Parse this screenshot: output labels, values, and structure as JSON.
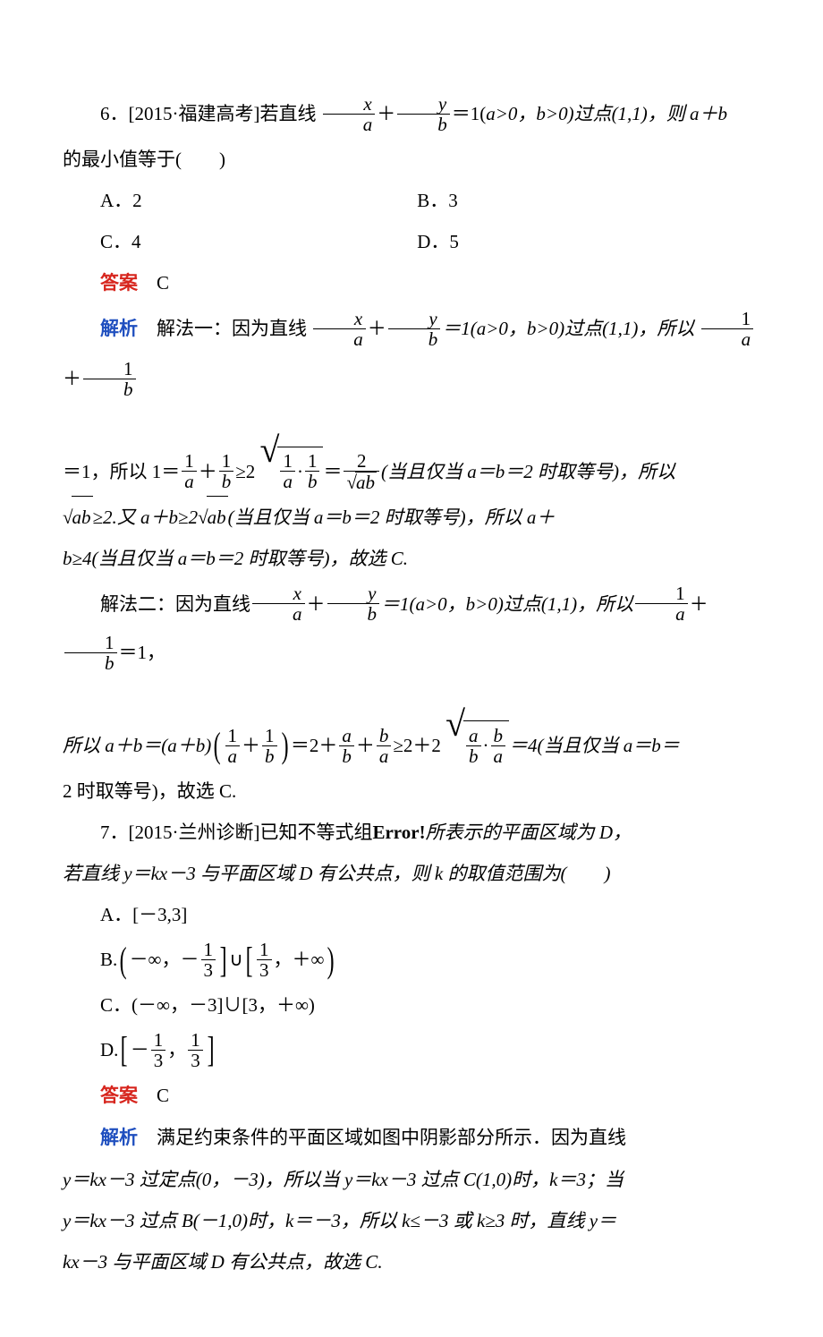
{
  "colors": {
    "text": "#000000",
    "answer_label": "#d7261e",
    "explain_label": "#1f4fbf",
    "background": "#ffffff",
    "rule": "#000000"
  },
  "typography": {
    "body_family": "SimSun / Songti SC, serif",
    "latin_math_family": "Times New Roman, serif",
    "label_family": "SimHei / Heiti SC, sans-serif",
    "body_fontsize_pt": 16,
    "line_height": 2.2
  },
  "labels": {
    "answer": "答案",
    "explain": "解析"
  },
  "q6": {
    "number": "6．",
    "source": "[2015·福建高考]",
    "stem_before_frac": "若直线",
    "stem_frac1_num": "x",
    "stem_frac1_den": "a",
    "stem_plus": "＋",
    "stem_frac2_num": "y",
    "stem_frac2_den": "b",
    "stem_eq": "＝1(",
    "stem_cond": "a>0，b>0)过点(1,1)，则 a＋b",
    "stem_line2": "的最小值等于(　　)",
    "options": {
      "A": "A．2",
      "B": "B．3",
      "C": "C．4",
      "D": "D．5"
    },
    "answer_value": "C",
    "method1_label": "解法一：因为直线",
    "m1_frac1_num": "x",
    "m1_frac1_den": "a",
    "m1_frac2_num": "y",
    "m1_frac2_den": "b",
    "m1_mid": "＝1(a>0，b>0)过点(1,1)，所以",
    "m1_frac3_num": "1",
    "m1_frac3_den": "a",
    "m1_frac4_num": "1",
    "m1_frac4_den": "b",
    "m1_line2_a": "＝1，所以 1＝",
    "m1_frac5_num": "1",
    "m1_frac5_den": "a",
    "m1_frac6_num": "1",
    "m1_frac6_den": "b",
    "m1_ge": "≥2",
    "m1_rt_inner_num1": "1",
    "m1_rt_inner_den1": "a",
    "m1_rt_inner_num2": "1",
    "m1_rt_inner_den2": "b",
    "m1_eq2_num": "2",
    "m1_eq2_den_rad": "ab",
    "m1_line2_tail": "(当且仅当 a＝b＝2 时取等号)，所以",
    "m1_line3_a": "ab",
    "m1_line3_b": "≥2.又 a＋b≥2",
    "m1_line3_c": "ab",
    "m1_line3_d": "(当且仅当 a＝b＝2 时取等号)，所以 a＋",
    "m1_line4": "b≥4(当且仅当 a＝b＝2 时取等号)，故选 C.",
    "method2_label": "解法二：因为直线",
    "m2_frac1_num": "x",
    "m2_frac1_den": "a",
    "m2_frac2_num": "y",
    "m2_frac2_den": "b",
    "m2_mid": "＝1(a>0，b>0)过点(1,1)，所以",
    "m2_frac3_num": "1",
    "m2_frac3_den": "a",
    "m2_frac4_num": "1",
    "m2_frac4_den": "b",
    "m2_tail1": "＝1，",
    "m2_line2_a": "所以 a＋b＝(a＋b)",
    "m2_pfrac1_num": "1",
    "m2_pfrac1_den": "a",
    "m2_pfrac2_num": "1",
    "m2_pfrac2_den": "b",
    "m2_line2_b": "＝2＋",
    "m2_frac_ab_num": "a",
    "m2_frac_ab_den": "b",
    "m2_frac_ba_num": "b",
    "m2_frac_ba_den": "a",
    "m2_line2_c": "≥2＋2",
    "m2_rt_inner1_num": "a",
    "m2_rt_inner1_den": "b",
    "m2_rt_inner2_num": "b",
    "m2_rt_inner2_den": "a",
    "m2_line2_d": "＝4(当且仅当 a＝b＝",
    "m2_line3": "2 时取等号)，故选 C."
  },
  "q7": {
    "number": "7．",
    "source": "[2015·兰州诊断]",
    "stem_a": "已知不等式组",
    "error_text": "Error!",
    "stem_b": "所表示的平面区域为 D，",
    "stem_line2": "若直线 y＝kx－3 与平面区域 D 有公共点，则 k 的取值范围为(　　)",
    "optA": "A．[－3,3]",
    "optB_a": "B.",
    "optB_b": "－∞，－",
    "optB_frac1_num": "1",
    "optB_frac1_den": "3",
    "optB_c": "∪",
    "optB_frac2_num": "1",
    "optB_frac2_den": "3",
    "optB_d": "，＋∞",
    "optC": "C．(－∞，－3]∪[3，＋∞)",
    "optD_a": "D.",
    "optD_b": "－",
    "optD_frac1_num": "1",
    "optD_frac1_den": "3",
    "optD_c": "，",
    "optD_frac2_num": "1",
    "optD_frac2_den": "3",
    "answer_value": "C",
    "explain_l1": "满足约束条件的平面区域如图中阴影部分所示．因为直线",
    "explain_l2": "y＝kx－3 过定点(0，－3)，所以当 y＝kx－3 过点 C(1,0)时，k＝3；当",
    "explain_l3": "y＝kx－3 过点 B(－1,0)时，k＝－3，所以 k≤－3 或 k≥3 时，直线 y＝",
    "explain_l4": "kx－3 与平面区域 D 有公共点，故选 C."
  }
}
